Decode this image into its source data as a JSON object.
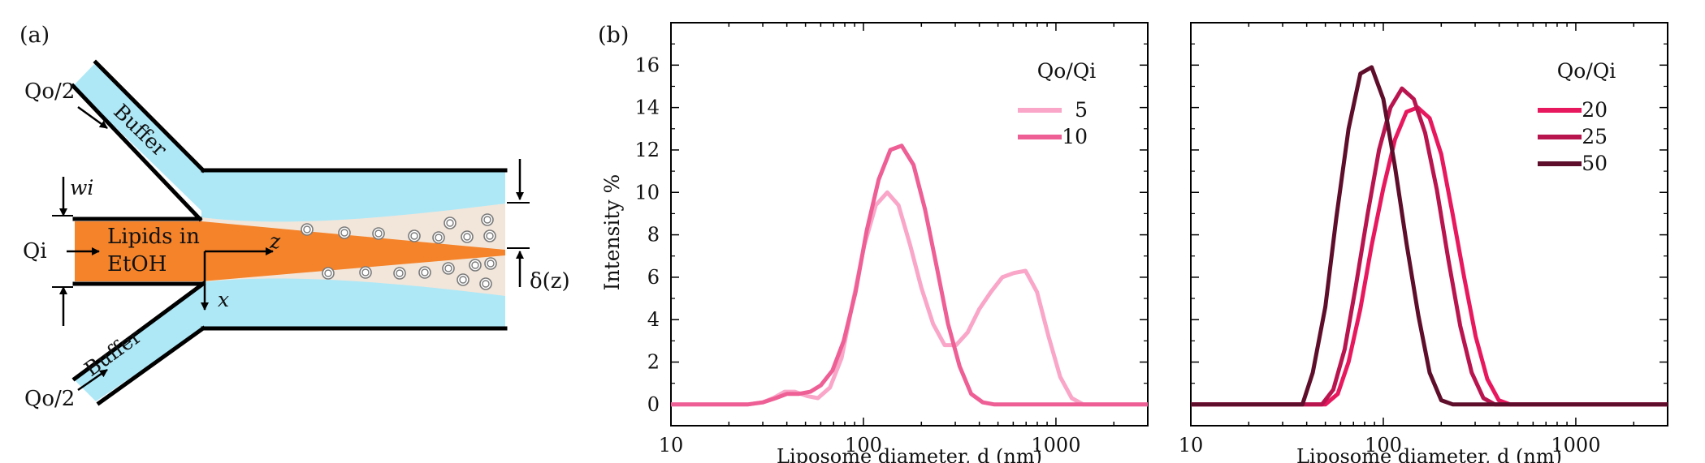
{
  "panel_a": {
    "label": "(a)",
    "q_top": "Qo/2",
    "q_bottom": "Qo/2",
    "buffer_top": "Buffer",
    "buffer_bottom": "Buffer",
    "wi": "wi",
    "qi": "Qi",
    "lipids_line1": "Lipids in",
    "lipids_line2": "EtOH",
    "axis_z": "z",
    "axis_x": "x",
    "delta": "δ(z)",
    "colors": {
      "buffer": "#aee8f7",
      "ethanol": "#f5832a",
      "mixing": "#f2e6da",
      "liposome": "#777777"
    }
  },
  "panel_b": {
    "label": "(b)"
  },
  "chart_data": [
    {
      "type": "line",
      "xlabel": "Liposome diameter, d (nm)",
      "ylabel": "Intensity %",
      "x_scale": "log",
      "xlim": [
        10,
        3000
      ],
      "ylim": [
        -1,
        18
      ],
      "xticks": [
        "10",
        "100",
        "1000"
      ],
      "yticks": [
        "0",
        "2",
        "4",
        "6",
        "8",
        "10",
        "12",
        "14",
        "16"
      ],
      "legend_title": "Qo/Qi",
      "legend_position": "top-right",
      "series": [
        {
          "name": "5",
          "color": "#f9a6c9",
          "x": [
            10,
            25,
            30,
            34,
            39,
            44,
            51,
            58,
            67,
            77,
            88,
            101,
            116,
            133,
            152,
            175,
            200,
            230,
            264,
            303,
            348,
            400,
            459,
            527,
            605,
            695,
            798,
            916,
            1052,
            1208,
            1387,
            3000
          ],
          "y": [
            0,
            0,
            0.1,
            0.3,
            0.6,
            0.6,
            0.4,
            0.3,
            0.8,
            2.2,
            4.8,
            7.5,
            9.4,
            10.0,
            9.4,
            7.5,
            5.5,
            3.8,
            2.8,
            2.8,
            3.4,
            4.5,
            5.3,
            6.0,
            6.2,
            6.3,
            5.3,
            3.2,
            1.3,
            0.3,
            0,
            0
          ]
        },
        {
          "name": "10",
          "color": "#ee5f95",
          "x": [
            10,
            25,
            30,
            35,
            40,
            46,
            53,
            60,
            69,
            79,
            91,
            104,
            120,
            138,
            158,
            182,
            209,
            240,
            275,
            316,
            363,
            417,
            479,
            550,
            632,
            725,
            3000
          ],
          "y": [
            0,
            0,
            0.1,
            0.3,
            0.5,
            0.5,
            0.6,
            0.9,
            1.6,
            3.0,
            5.3,
            8.2,
            10.6,
            12.0,
            12.2,
            11.3,
            9.2,
            6.5,
            3.8,
            1.8,
            0.5,
            0.1,
            0,
            0,
            0,
            0,
            0
          ]
        }
      ]
    },
    {
      "type": "line",
      "xlabel": "Liposome diameter, d (nm)",
      "ylabel": "",
      "x_scale": "log",
      "xlim": [
        10,
        3000
      ],
      "ylim": [
        -1,
        18
      ],
      "xticks": [
        "10",
        "100",
        "1000"
      ],
      "legend_title": "Qo/Qi",
      "legend_position": "top-right",
      "series": [
        {
          "name": "20",
          "color": "#e8185f",
          "x": [
            10,
            50,
            58,
            66,
            76,
            87,
            100,
            115,
            132,
            151,
            174,
            200,
            229,
            263,
            302,
            347,
            398,
            457,
            3000
          ],
          "y": [
            0,
            0,
            0.5,
            2.0,
            4.5,
            7.5,
            10.2,
            12.5,
            13.8,
            14.0,
            13.5,
            11.8,
            9.0,
            6.0,
            3.2,
            1.2,
            0.2,
            0,
            0
          ]
        },
        {
          "name": "25",
          "color": "#b8154f",
          "x": [
            10,
            48,
            55,
            63,
            72,
            83,
            95,
            109,
            125,
            144,
            165,
            190,
            218,
            251,
            288,
            331,
            380,
            3000
          ],
          "y": [
            0,
            0,
            0.7,
            2.6,
            5.6,
            9.0,
            12.0,
            14.0,
            14.9,
            14.4,
            12.8,
            10.1,
            6.8,
            3.7,
            1.5,
            0.3,
            0,
            0
          ]
        },
        {
          "name": "50",
          "color": "#5e0e2b",
          "x": [
            10,
            38,
            43,
            50,
            57,
            66,
            76,
            87,
            100,
            115,
            132,
            152,
            174,
            200,
            230,
            264,
            3000
          ],
          "y": [
            0,
            0,
            1.5,
            4.6,
            8.8,
            13.0,
            15.6,
            15.9,
            14.4,
            11.2,
            7.6,
            4.2,
            1.5,
            0.2,
            0,
            0,
            0
          ]
        }
      ]
    }
  ]
}
